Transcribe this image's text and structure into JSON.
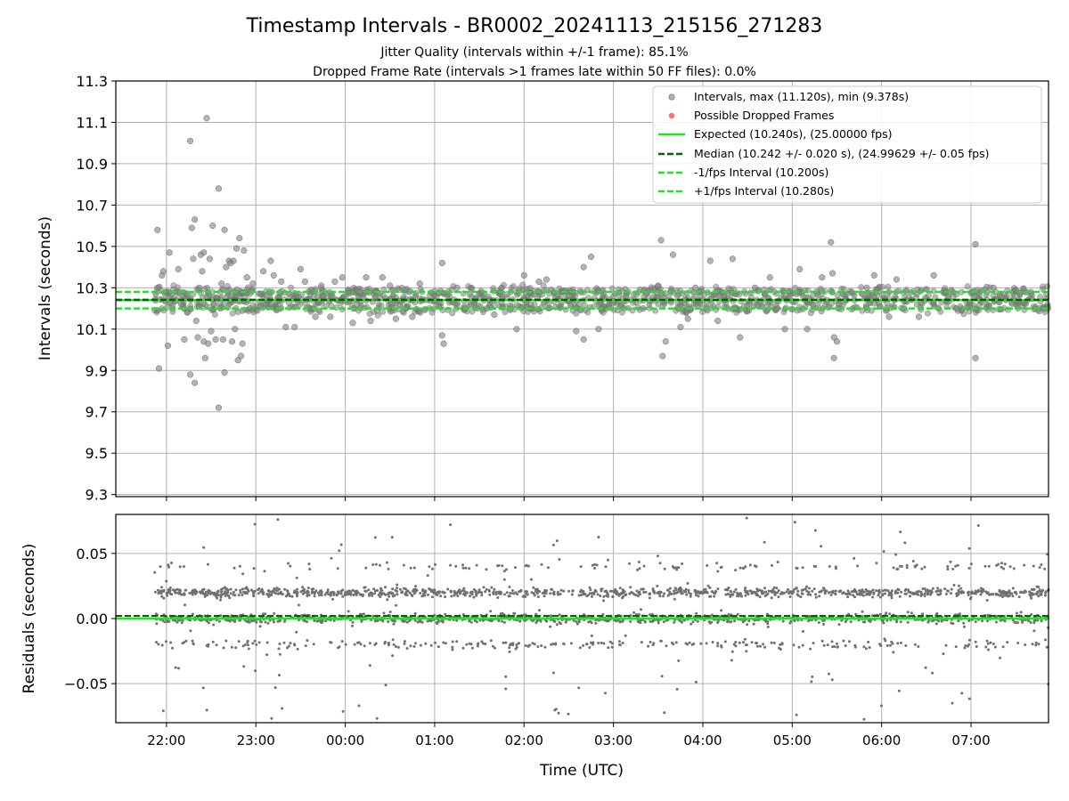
{
  "chart_data": {
    "type": "scatter",
    "title": "Timestamp Intervals - BR0002_20241113_215156_271283",
    "subtitle": [
      "Jitter Quality (intervals within +/-1 frame): 85.1%",
      "Dropped Frame Rate (intervals >1 frames late within 50 FF files): 0.0%"
    ],
    "xlabel": "Time (UTC)",
    "x_start": "21:26",
    "x_end": "07:52",
    "x_ticks": [
      "22:00",
      "23:00",
      "00:00",
      "01:00",
      "02:00",
      "03:00",
      "04:00",
      "05:00",
      "06:00",
      "07:00"
    ],
    "grid": true,
    "legend_position": "top-right",
    "colors": {
      "intervals": "#808080",
      "dropped": "#ff4d4d",
      "expected": "#1ee61e",
      "median": "#006400",
      "bounds": "#1ee61e"
    },
    "top_panel": {
      "ylabel": "Intervals (seconds)",
      "ylim": [
        9.29,
        11.3
      ],
      "y_ticks": [
        "9.3",
        "9.5",
        "9.7",
        "9.9",
        "10.1",
        "10.3",
        "10.5",
        "10.7",
        "10.9",
        "11.1",
        "11.3"
      ],
      "expected": 10.24,
      "median": 10.242,
      "minus_1_fps": 10.2,
      "plus_1_fps": 10.28,
      "series": [
        {
          "name": "Intervals, max (11.120s), min (9.378s)",
          "marker": "circle",
          "line": "none"
        },
        {
          "name": "Possible Dropped Frames",
          "marker": "circle",
          "line": "none"
        },
        {
          "name": "Expected (10.240s), (25.00000 fps)",
          "marker": "none",
          "line": "solid"
        },
        {
          "name": "Median (10.242 +/- 0.020 s), (24.99629 +/- 0.05 fps)",
          "marker": "none",
          "line": "dashed"
        },
        {
          "name": "-1/fps Interval (10.200s)",
          "marker": "none",
          "line": "dashed"
        },
        {
          "name": "+1/fps Interval (10.280s)",
          "marker": "none",
          "line": "dashed"
        }
      ],
      "outliers": [
        [
          "21:54",
          10.58
        ],
        [
          "21:55",
          9.91
        ],
        [
          "21:57",
          10.36
        ],
        [
          "21:58",
          10.38
        ],
        [
          "22:02",
          10.47
        ],
        [
          "22:01",
          10.02
        ],
        [
          "22:08",
          10.39
        ],
        [
          "22:10",
          10.22
        ],
        [
          "22:12",
          10.05
        ],
        [
          "22:14",
          10.18
        ],
        [
          "22:16",
          11.01
        ],
        [
          "22:16",
          9.88
        ],
        [
          "22:17",
          10.59
        ],
        [
          "22:18",
          10.44
        ],
        [
          "22:19",
          10.63
        ],
        [
          "22:19",
          9.84
        ],
        [
          "22:20",
          10.14
        ],
        [
          "22:21",
          10.06
        ],
        [
          "22:22",
          10.3
        ],
        [
          "22:23",
          10.46
        ],
        [
          "22:24",
          10.38
        ],
        [
          "22:25",
          10.47
        ],
        [
          "22:25",
          10.04
        ],
        [
          "22:26",
          9.96
        ],
        [
          "22:27",
          11.12
        ],
        [
          "22:28",
          10.03
        ],
        [
          "22:29",
          10.44
        ],
        [
          "22:30",
          10.09
        ],
        [
          "22:31",
          10.6
        ],
        [
          "22:32",
          10.22
        ],
        [
          "22:33",
          10.05
        ],
        [
          "22:34",
          10.25
        ],
        [
          "22:35",
          10.78
        ],
        [
          "22:35",
          9.72
        ],
        [
          "22:37",
          10.32
        ],
        [
          "22:38",
          10.05
        ],
        [
          "22:39",
          10.58
        ],
        [
          "22:39",
          9.89
        ],
        [
          "22:40",
          10.4
        ],
        [
          "22:41",
          10.26
        ],
        [
          "22:42",
          10.43
        ],
        [
          "22:43",
          10.42
        ],
        [
          "22:44",
          10.04
        ],
        [
          "22:45",
          10.43
        ],
        [
          "22:46",
          10.1
        ],
        [
          "22:47",
          10.49
        ],
        [
          "22:48",
          9.95
        ],
        [
          "22:49",
          10.54
        ],
        [
          "22:50",
          9.97
        ],
        [
          "22:51",
          10.03
        ],
        [
          "22:52",
          10.48
        ],
        [
          "22:54",
          10.35
        ],
        [
          "22:56",
          10.2
        ],
        [
          "22:58",
          10.32
        ],
        [
          "23:01",
          10.19
        ],
        [
          "23:03",
          10.27
        ],
        [
          "23:05",
          10.38
        ],
        [
          "23:07",
          10.22
        ],
        [
          "23:10",
          10.43
        ],
        [
          "23:12",
          10.36
        ],
        [
          "23:17",
          10.33
        ],
        [
          "23:20",
          10.11
        ],
        [
          "23:26",
          10.11
        ],
        [
          "23:30",
          10.39
        ],
        [
          "23:33",
          10.33
        ],
        [
          "23:37",
          10.29
        ],
        [
          "23:40",
          10.16
        ],
        [
          "23:44",
          10.31
        ],
        [
          "23:50",
          10.16
        ],
        [
          "23:53",
          10.33
        ],
        [
          "23:58",
          10.35
        ],
        [
          "00:02",
          10.28
        ],
        [
          "00:05",
          10.13
        ],
        [
          "00:08",
          10.22
        ],
        [
          "00:10",
          10.28
        ],
        [
          "00:14",
          10.35
        ],
        [
          "00:17",
          10.14
        ],
        [
          "00:20",
          10.25
        ],
        [
          "00:25",
          10.35
        ],
        [
          "00:30",
          10.31
        ],
        [
          "00:34",
          10.15
        ],
        [
          "00:40",
          10.29
        ],
        [
          "00:45",
          10.16
        ],
        [
          "00:50",
          10.32
        ],
        [
          "01:05",
          10.42
        ],
        [
          "01:05",
          10.07
        ],
        [
          "01:06",
          10.03
        ],
        [
          "01:15",
          10.3
        ],
        [
          "01:30",
          10.27
        ],
        [
          "01:35",
          10.2
        ],
        [
          "01:40",
          10.17
        ],
        [
          "01:45",
          10.3
        ],
        [
          "01:55",
          10.1
        ],
        [
          "02:00",
          10.36
        ],
        [
          "02:10",
          10.33
        ],
        [
          "02:15",
          10.34
        ],
        [
          "02:35",
          10.09
        ],
        [
          "02:40",
          10.4
        ],
        [
          "02:40",
          10.05
        ],
        [
          "02:45",
          10.45
        ],
        [
          "02:50",
          10.1
        ],
        [
          "03:20",
          10.2
        ],
        [
          "03:30",
          10.31
        ],
        [
          "03:32",
          10.53
        ],
        [
          "03:33",
          9.97
        ],
        [
          "03:35",
          10.04
        ],
        [
          "03:40",
          10.46
        ],
        [
          "03:45",
          10.11
        ],
        [
          "03:50",
          10.15
        ],
        [
          "03:55",
          10.3
        ],
        [
          "04:05",
          10.43
        ],
        [
          "04:10",
          10.14
        ],
        [
          "04:20",
          10.44
        ],
        [
          "04:25",
          10.06
        ],
        [
          "04:35",
          10.3
        ],
        [
          "04:45",
          10.35
        ],
        [
          "04:50",
          10.2
        ],
        [
          "04:55",
          10.1
        ],
        [
          "05:05",
          10.39
        ],
        [
          "05:10",
          10.1
        ],
        [
          "05:20",
          10.35
        ],
        [
          "05:26",
          10.52
        ],
        [
          "05:27",
          10.37
        ],
        [
          "05:28",
          10.06
        ],
        [
          "05:28",
          9.96
        ],
        [
          "05:30",
          10.04
        ],
        [
          "05:40",
          10.28
        ],
        [
          "05:50",
          10.3
        ],
        [
          "05:55",
          10.36
        ],
        [
          "06:05",
          10.16
        ],
        [
          "06:10",
          10.34
        ],
        [
          "06:25",
          10.16
        ],
        [
          "06:35",
          10.36
        ],
        [
          "06:50",
          10.2
        ],
        [
          "07:03",
          10.51
        ],
        [
          "07:03",
          9.96
        ],
        [
          "07:15",
          10.3
        ],
        [
          "07:30",
          10.29
        ]
      ]
    },
    "bottom_panel": {
      "ylabel": "Residuals (seconds)",
      "ylim": [
        -0.08,
        0.08
      ],
      "y_ticks": [
        "0.05",
        "0.00",
        "−0.05"
      ],
      "y_tick_values": [
        0.05,
        0.0,
        -0.05
      ],
      "bands": [
        0.02,
        0.0,
        -0.02
      ],
      "median_residual": 0.002,
      "expected_residual": 0.0
    }
  }
}
